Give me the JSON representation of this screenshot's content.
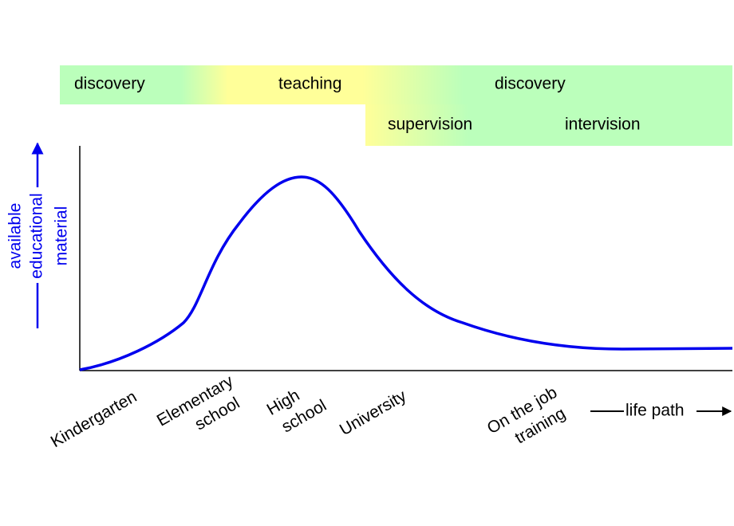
{
  "bands": [
    {
      "label": "discovery"
    },
    {
      "label": "teaching"
    },
    {
      "label": "discovery"
    },
    {
      "label": "supervision"
    },
    {
      "label": "intervision"
    }
  ],
  "y_axis_label": [
    "available",
    "educational",
    "material"
  ],
  "x_axis_label": "life path",
  "stages": [
    {
      "lines": [
        "Kindergarten"
      ]
    },
    {
      "lines": [
        "Elementary",
        "school"
      ]
    },
    {
      "lines": [
        "High",
        "school"
      ]
    },
    {
      "lines": [
        "University"
      ]
    },
    {
      "lines": [
        "On the job",
        "training"
      ]
    }
  ]
}
